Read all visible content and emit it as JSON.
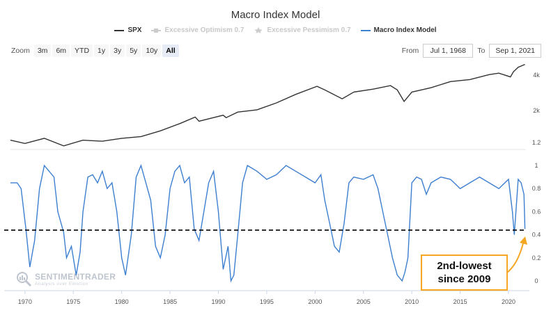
{
  "title": "Macro Index Model",
  "legend": [
    {
      "label": "SPX",
      "color": "#333333",
      "active": true,
      "icon": "line-icon"
    },
    {
      "label": "Excessive Optimism 0.7",
      "color": "#c8c8c8",
      "active": false,
      "icon": "square-marker-icon"
    },
    {
      "label": "Excessive Pessimism 0.7",
      "color": "#c8c8c8",
      "active": false,
      "icon": "star-marker-icon"
    },
    {
      "label": "Macro Index Model",
      "color": "#3d7fd0",
      "active": true,
      "icon": "line-icon"
    }
  ],
  "zoom": {
    "label": "Zoom",
    "buttons": [
      "3m",
      "6m",
      "YTD",
      "1y",
      "3y",
      "5y",
      "10y",
      "All"
    ],
    "active": "All"
  },
  "range": {
    "from_label": "From",
    "from_value": "Jul 1, 1968",
    "to_label": "To",
    "to_value": "Sep 1, 2021"
  },
  "annotation": {
    "line1": "2nd-lowest",
    "line2": "since 2009",
    "color": "#f5a623"
  },
  "watermark": {
    "main": "SENTIMENTRADER",
    "sub": "Analysis over Emotion"
  },
  "chart_data": [
    {
      "type": "line",
      "name": "SPX",
      "color": "#333333",
      "scale": "log",
      "y_ticks": [
        "1.2",
        "2k",
        "4k"
      ],
      "x": [
        1968.5,
        1970,
        1972,
        1974,
        1976,
        1978,
        1980,
        1982,
        1984,
        1986,
        1987.6,
        1988,
        1990.5,
        1990.8,
        1992,
        1994,
        1996,
        1998,
        2000.2,
        2001,
        2002.8,
        2004,
        2006,
        2007.8,
        2008.5,
        2009.2,
        2010,
        2012,
        2014,
        2016,
        2018,
        2019,
        2020.2,
        2020.5,
        2021,
        2021.7
      ],
      "y": [
        100,
        85,
        110,
        75,
        100,
        95,
        110,
        120,
        160,
        230,
        320,
        260,
        350,
        310,
        410,
        460,
        650,
        1000,
        1500,
        1250,
        800,
        1120,
        1300,
        1550,
        1250,
        700,
        1120,
        1400,
        1900,
        2100,
        2700,
        2900,
        2400,
        3100,
        3900,
        4500
      ]
    },
    {
      "type": "line",
      "name": "Macro Index Model",
      "color": "#3d7fd0",
      "ylim": [
        0,
        1
      ],
      "y_ticks": [
        "0",
        "0.2",
        "0.4",
        "0.6",
        "0.8",
        "1"
      ],
      "threshold": 0.44,
      "x": [
        1968.5,
        1969.2,
        1969.6,
        1970.1,
        1970.5,
        1971,
        1971.5,
        1972,
        1973,
        1973.4,
        1974,
        1974.3,
        1974.8,
        1975.3,
        1975.7,
        1976,
        1976.5,
        1977,
        1977.5,
        1978,
        1978.5,
        1979,
        1979.5,
        1980,
        1980.4,
        1981,
        1981.5,
        1982,
        1982.5,
        1983,
        1983.5,
        1984,
        1984.5,
        1985,
        1985.5,
        1986,
        1986.5,
        1987,
        1987.5,
        1988,
        1989,
        1989.5,
        1990,
        1990.5,
        1991,
        1991.3,
        1991.6,
        1992,
        1992.5,
        1993,
        1994,
        1995,
        1996,
        1997,
        1998,
        1999,
        2000,
        2000.6,
        2001,
        2001.5,
        2002,
        2002.5,
        2003,
        2003.5,
        2004,
        2005,
        2006,
        2006.5,
        2007,
        2007.5,
        2008,
        2008.5,
        2009,
        2009.3,
        2009.6,
        2010,
        2010.5,
        2011,
        2011.5,
        2012,
        2013,
        2014,
        2015,
        2016,
        2017,
        2018,
        2019,
        2020,
        2020.4,
        2020.6,
        2021,
        2021.3,
        2021.6,
        2021.7
      ],
      "y": [
        0.85,
        0.85,
        0.8,
        0.45,
        0.12,
        0.35,
        0.8,
        1.0,
        0.9,
        0.6,
        0.42,
        0.2,
        0.3,
        0.05,
        0.25,
        0.6,
        0.9,
        0.92,
        0.85,
        0.95,
        0.8,
        0.85,
        0.6,
        0.2,
        0.05,
        0.4,
        0.9,
        1.0,
        0.85,
        0.7,
        0.3,
        0.2,
        0.4,
        0.8,
        0.95,
        1.0,
        0.85,
        0.9,
        0.45,
        0.35,
        0.85,
        0.95,
        0.6,
        0.1,
        0.3,
        0.0,
        0.05,
        0.4,
        0.85,
        1.0,
        0.95,
        0.88,
        0.92,
        1.0,
        0.95,
        0.9,
        0.85,
        0.92,
        0.7,
        0.5,
        0.3,
        0.25,
        0.5,
        0.85,
        0.9,
        0.88,
        0.92,
        0.8,
        0.6,
        0.4,
        0.2,
        0.05,
        0.0,
        0.08,
        0.2,
        0.85,
        0.9,
        0.88,
        0.75,
        0.85,
        0.9,
        0.88,
        0.8,
        0.85,
        0.9,
        0.85,
        0.8,
        0.88,
        0.6,
        0.4,
        0.88,
        0.85,
        0.75,
        0.45
      ]
    }
  ],
  "x_axis": {
    "ticks": [
      "1970",
      "1975",
      "1980",
      "1985",
      "1990",
      "1995",
      "2000",
      "2005",
      "2010",
      "2015",
      "2020"
    ],
    "range": [
      1968.5,
      2021.8
    ]
  }
}
